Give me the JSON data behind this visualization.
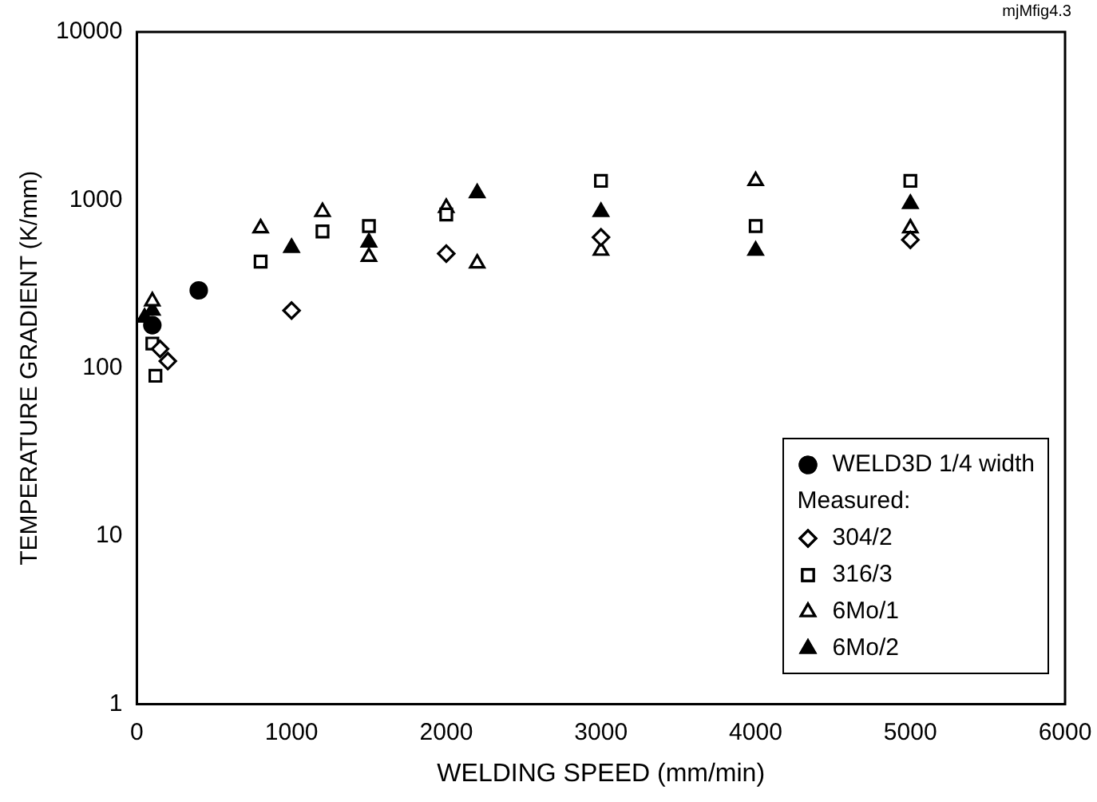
{
  "chart_data": {
    "type": "scatter",
    "xlabel": "WELDING SPEED (mm/min)",
    "ylabel": "TEMPERATURE GRADIENT (K/mm)",
    "legend_title": "Measured:",
    "annotations": [
      "mjMfig4.3"
    ],
    "xlim": [
      0,
      6000
    ],
    "xticks": [
      0,
      1000,
      2000,
      3000,
      4000,
      5000,
      6000
    ],
    "ylim": [
      1,
      10000
    ],
    "yticks": [
      1,
      10,
      100,
      1000,
      10000
    ],
    "log": "y",
    "grid": false,
    "legend": "bottom right",
    "series": [
      {
        "name": "WELD3D 1/4 width",
        "color": "#000000",
        "marker": "circle",
        "x": [
          100,
          400
        ],
        "values": [
          180,
          290
        ]
      },
      {
        "name": "304/2",
        "color": "#000000",
        "marker": "diamond",
        "x": [
          150,
          200,
          1000,
          2000,
          3000,
          5000
        ],
        "values": [
          130,
          110,
          220,
          480,
          600,
          580
        ]
      },
      {
        "name": "316/3",
        "color": "#000000",
        "marker": "square",
        "x": [
          100,
          120,
          800,
          1200,
          1500,
          2000,
          3000,
          4000,
          5000
        ],
        "values": [
          140,
          90,
          430,
          650,
          700,
          820,
          1300,
          700,
          1300
        ]
      },
      {
        "name": "6Mo/1",
        "color": "#000000",
        "marker": "triangle",
        "x": [
          100,
          800,
          1200,
          1500,
          2000,
          2200,
          3000,
          4000,
          5000
        ],
        "values": [
          250,
          680,
          850,
          460,
          900,
          420,
          500,
          1300,
          680
        ]
      },
      {
        "name": "6Mo/2",
        "color": "#000000",
        "marker": "triangle_filled",
        "x": [
          50,
          100,
          1000,
          1500,
          2200,
          3000,
          4000,
          5000
        ],
        "values": [
          200,
          220,
          520,
          560,
          1100,
          850,
          500,
          950
        ]
      }
    ]
  }
}
